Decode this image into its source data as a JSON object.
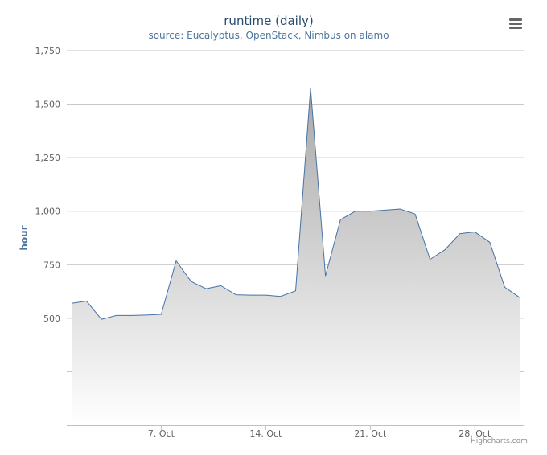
{
  "chart_data": {
    "type": "area",
    "title": "runtime (daily)",
    "subtitle": "source: Eucalyptus, OpenStack, Nimbus on alamo",
    "ylabel": "hour",
    "xlabel": "",
    "ylim": [
      0,
      1750
    ],
    "y_ticks": [
      500,
      750,
      1000,
      1250,
      1500,
      1750
    ],
    "y_tick_labels": [
      "500",
      "750",
      "1,000",
      "1,250",
      "1,500",
      "1,750"
    ],
    "x_ticks": [
      "2013-10-07",
      "2013-10-14",
      "2013-10-21",
      "2013-10-28"
    ],
    "x_tick_labels": [
      "7. Oct",
      "14. Oct",
      "21. Oct",
      "28. Oct"
    ],
    "x": [
      "2013-10-01",
      "2013-10-02",
      "2013-10-03",
      "2013-10-04",
      "2013-10-05",
      "2013-10-06",
      "2013-10-07",
      "2013-10-08",
      "2013-10-09",
      "2013-10-10",
      "2013-10-11",
      "2013-10-12",
      "2013-10-13",
      "2013-10-14",
      "2013-10-15",
      "2013-10-16",
      "2013-10-17",
      "2013-10-18",
      "2013-10-19",
      "2013-10-20",
      "2013-10-21",
      "2013-10-22",
      "2013-10-23",
      "2013-10-24",
      "2013-10-25",
      "2013-10-26",
      "2013-10-27",
      "2013-10-28",
      "2013-10-29",
      "2013-10-30",
      "2013-10-31"
    ],
    "values": [
      570,
      580,
      495,
      513,
      513,
      515,
      518,
      768,
      672,
      638,
      652,
      610,
      608,
      608,
      602,
      628,
      1575,
      698,
      960,
      1000,
      1000,
      1005,
      1010,
      987,
      775,
      820,
      895,
      903,
      855,
      645,
      597
    ],
    "colors": {
      "line": "#4572a7",
      "fill_top": "#a8a8a8",
      "fill_bottom": "#ffffff",
      "grid": "#c0c0c0",
      "axis_text": "#606060",
      "ylabel": "#4d759e"
    },
    "grid": true,
    "legend": "none"
  },
  "ui": {
    "menu_icon": "hamburger-menu-icon",
    "credits": "Highcharts.com"
  }
}
